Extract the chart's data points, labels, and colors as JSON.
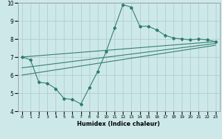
{
  "background_color": "#cde8e8",
  "grid_color": "#b0cccc",
  "line_color": "#2d7d6e",
  "xlabel": "Humidex (Indice chaleur)",
  "xlim": [
    -0.5,
    23.5
  ],
  "ylim": [
    4,
    10
  ],
  "xticks": [
    0,
    1,
    2,
    3,
    4,
    5,
    6,
    7,
    8,
    9,
    10,
    11,
    12,
    13,
    14,
    15,
    16,
    17,
    18,
    19,
    20,
    21,
    22,
    23
  ],
  "yticks": [
    4,
    5,
    6,
    7,
    8,
    9,
    10
  ],
  "line1_x": [
    0,
    1,
    2,
    3,
    4,
    5,
    6,
    7,
    8,
    9,
    10,
    11,
    12,
    13,
    14,
    15,
    16,
    17,
    18,
    19,
    20,
    21,
    22,
    23
  ],
  "line1_y": [
    7.0,
    6.85,
    5.6,
    5.55,
    5.25,
    4.7,
    4.65,
    4.4,
    5.3,
    6.2,
    7.3,
    8.6,
    9.9,
    9.75,
    8.7,
    8.7,
    8.5,
    8.2,
    8.05,
    8.0,
    7.95,
    8.0,
    7.95,
    7.85
  ],
  "line2_x": [
    0,
    23
  ],
  "line2_y": [
    7.0,
    7.85
  ],
  "line3_x": [
    0,
    23
  ],
  "line3_y": [
    6.4,
    7.75
  ],
  "line4_x": [
    0,
    23
  ],
  "line4_y": [
    6.0,
    7.65
  ]
}
